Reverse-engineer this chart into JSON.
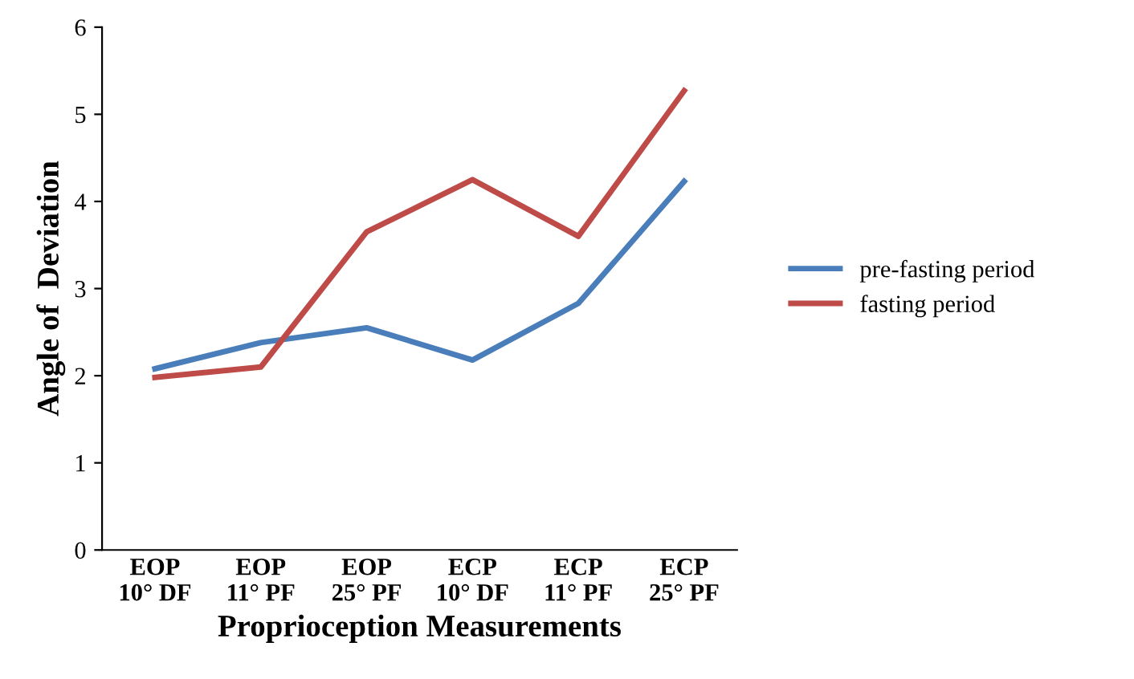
{
  "chart_data": {
    "type": "line",
    "xlabel": "Proprioception Measurements",
    "ylabel": "Angle of  Deviation",
    "categories": [
      "EOP\n10° DF",
      "EOP\n11° PF",
      "EOP\n25° PF",
      "ECP\n10° DF",
      "ECP\n11° PF",
      "ECP\n25° PF"
    ],
    "series": [
      {
        "name": "pre-fasting period",
        "color": "#4a7ebb",
        "values": [
          2.08,
          2.38,
          2.55,
          2.18,
          2.83,
          4.23
        ]
      },
      {
        "name": "fasting period",
        "color": "#be4b48",
        "values": [
          1.98,
          2.1,
          3.65,
          4.25,
          3.6,
          5.27
        ]
      }
    ],
    "ylim": [
      0,
      6
    ],
    "yticks": [
      0,
      1,
      2,
      3,
      4,
      5,
      6
    ],
    "grid": false,
    "legend": "right",
    "marker": "none",
    "line_style": "solid"
  }
}
